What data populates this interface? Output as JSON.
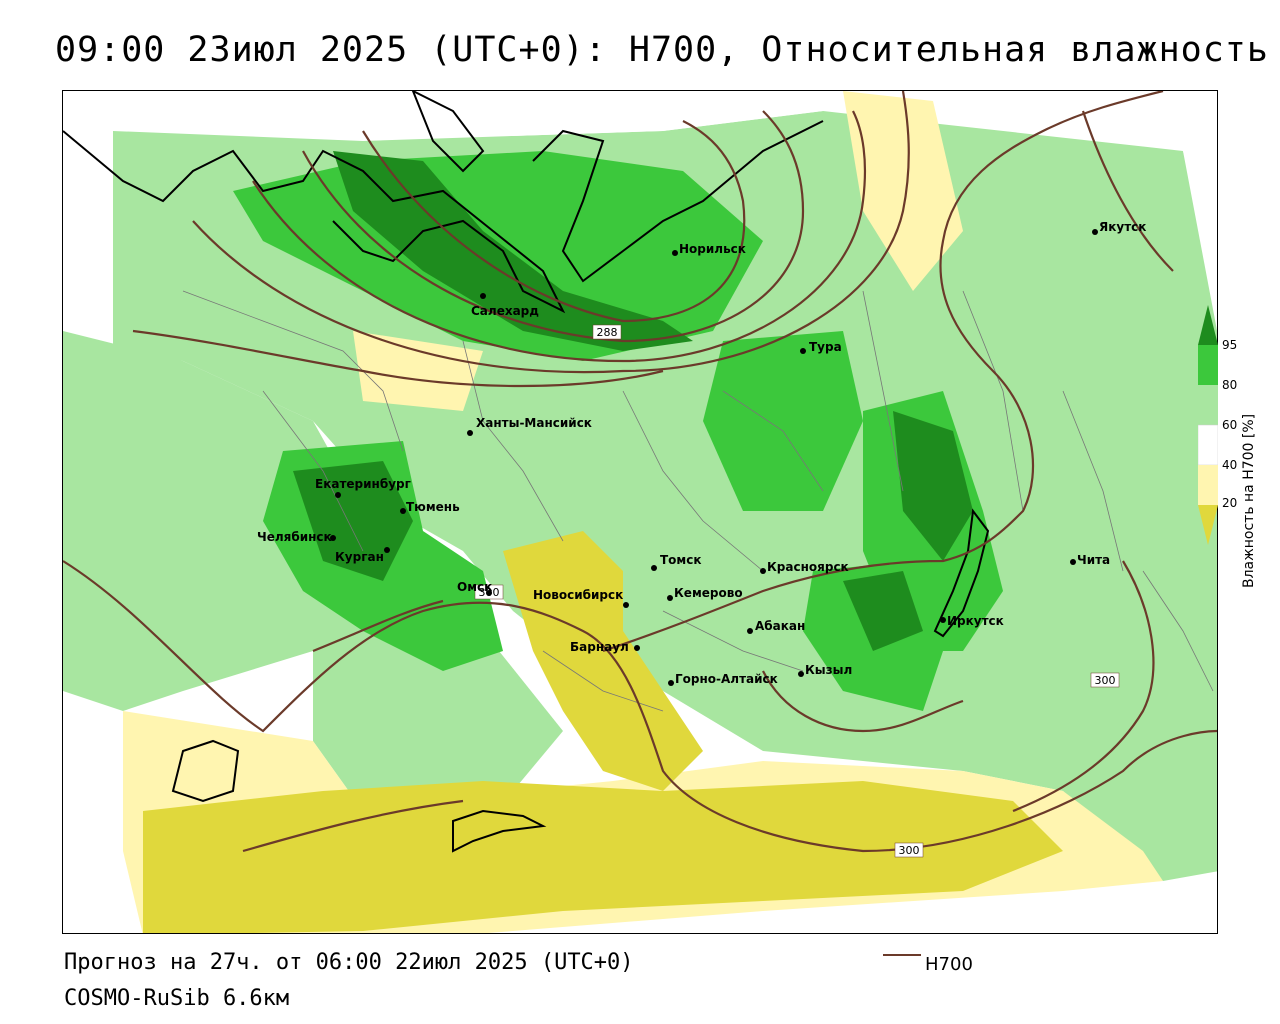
{
  "title": "09:00 23июл 2025 (UTC+0): H700, Относительная влажность",
  "footer": {
    "forecast": "Прогноз на 27ч. от 06:00 22июл 2025 (UTC+0)",
    "model": "COSMO-RuSib 6.6км",
    "line_legend": "H700"
  },
  "colorbar": {
    "title": "Влажность на H700 [%]",
    "ticks": [
      "95",
      "80",
      "60",
      "40",
      "20"
    ],
    "colors": {
      "c95": "#1e8c1e",
      "c80": "#3cc83c",
      "c60": "#a8e6a0",
      "c40": "#ffffff",
      "c20": "#fff5b0",
      "c0": "#e0d83c"
    }
  },
  "contour_color": "#6b3a2a",
  "cities": [
    {
      "name": "Норильск"
    },
    {
      "name": "Якутск"
    },
    {
      "name": "Салехард"
    },
    {
      "name": "Тура"
    },
    {
      "name": "Ханты-Мансийск"
    },
    {
      "name": "Екатеринбург"
    },
    {
      "name": "Тюмень"
    },
    {
      "name": "Челябинск"
    },
    {
      "name": "Курган"
    },
    {
      "name": "Омск"
    },
    {
      "name": "Томск"
    },
    {
      "name": "Красноярск"
    },
    {
      "name": "Новосибирск"
    },
    {
      "name": "Кемерово"
    },
    {
      "name": "Абакан"
    },
    {
      "name": "Барнаул"
    },
    {
      "name": "Горно-Алтайск"
    },
    {
      "name": "Кызыл"
    },
    {
      "name": "Иркутск"
    },
    {
      "name": "Чита"
    }
  ],
  "contour_labels": [
    "288",
    "300",
    "300",
    "300"
  ]
}
